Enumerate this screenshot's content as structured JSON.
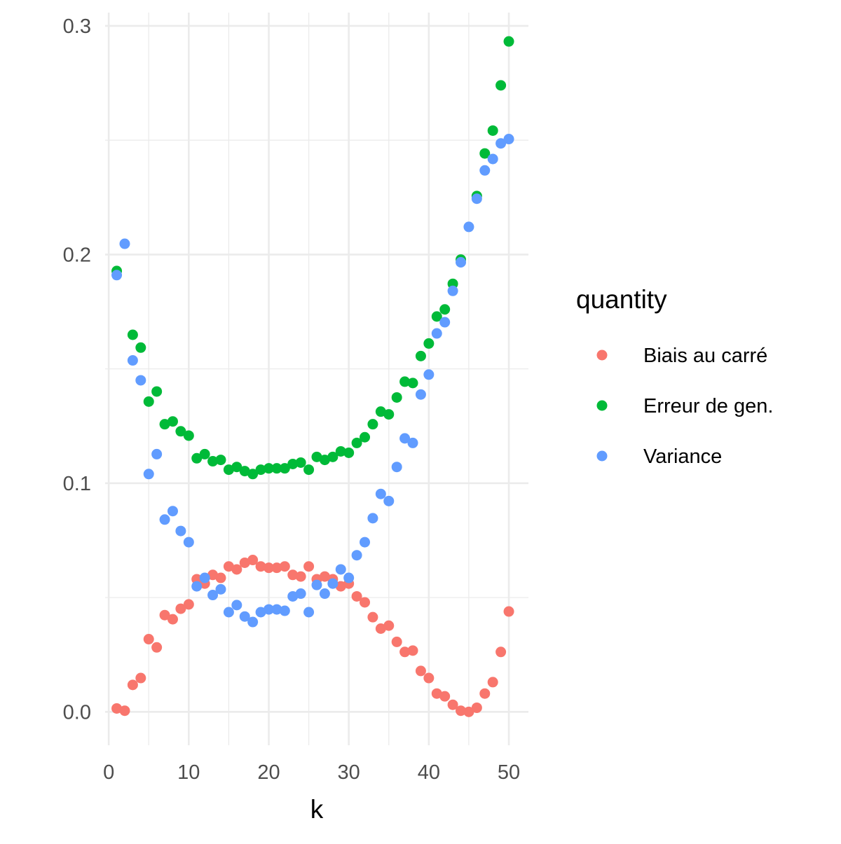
{
  "chart_data": {
    "type": "scatter",
    "title": "",
    "xlabel": "k",
    "ylabel": "",
    "xlim": [
      -0.45,
      52.45
    ],
    "ylim": [
      -0.0146,
      0.3058
    ],
    "x_ticks": [
      0,
      10,
      20,
      30,
      40,
      50
    ],
    "x_tick_labels": [
      "0",
      "10",
      "20",
      "30",
      "40",
      "50"
    ],
    "y_ticks": [
      0.0,
      0.1,
      0.2,
      0.3
    ],
    "y_tick_labels": [
      "0.0",
      "0.1",
      "0.2",
      "0.3"
    ],
    "grid": true,
    "legend": {
      "title": "quantity",
      "placement": "right"
    },
    "series": [
      {
        "name": "Biais au carré",
        "color": "#F8766D",
        "x": [
          1,
          2,
          3,
          4,
          5,
          6,
          7,
          8,
          9,
          10,
          11,
          12,
          13,
          14,
          15,
          16,
          17,
          18,
          19,
          20,
          21,
          22,
          23,
          24,
          25,
          26,
          27,
          28,
          29,
          30,
          31,
          32,
          33,
          34,
          35,
          36,
          37,
          38,
          39,
          40,
          41,
          42,
          43,
          44,
          45,
          46,
          47,
          48,
          49,
          50
        ],
        "y": [
          0.0015,
          0.0005,
          0.0118,
          0.0148,
          0.0318,
          0.0282,
          0.0423,
          0.0405,
          0.0451,
          0.047,
          0.058,
          0.0561,
          0.0599,
          0.0586,
          0.0636,
          0.0623,
          0.0652,
          0.0664,
          0.0636,
          0.063,
          0.063,
          0.0636,
          0.0599,
          0.0592,
          0.0636,
          0.058,
          0.0592,
          0.058,
          0.0549,
          0.0561,
          0.0505,
          0.0479,
          0.0414,
          0.0364,
          0.0377,
          0.0306,
          0.0262,
          0.0268,
          0.0179,
          0.0148,
          0.008,
          0.0068,
          0.0031,
          0.0005,
          0.0,
          0.0018,
          0.008,
          0.013,
          0.0262,
          0.0439
        ]
      },
      {
        "name": "Erreur de gen.",
        "color": "#00BA38",
        "x": [
          1,
          2,
          3,
          4,
          5,
          6,
          7,
          8,
          9,
          10,
          11,
          12,
          13,
          14,
          15,
          16,
          17,
          18,
          19,
          20,
          21,
          22,
          23,
          24,
          25,
          26,
          27,
          28,
          29,
          30,
          31,
          32,
          33,
          34,
          35,
          36,
          37,
          38,
          39,
          40,
          41,
          42,
          43,
          44,
          45,
          46,
          47,
          48,
          49,
          50
        ],
        "y": [
          0.1928,
          null,
          0.1649,
          0.1593,
          0.1357,
          0.1401,
          0.1258,
          0.127,
          0.1227,
          0.1208,
          0.1109,
          0.1127,
          0.1096,
          0.1102,
          0.1059,
          0.1071,
          0.1053,
          0.104,
          0.1059,
          0.1065,
          0.1065,
          0.1065,
          0.1084,
          0.109,
          0.1059,
          0.1115,
          0.1102,
          0.1115,
          0.1139,
          0.1133,
          0.1176,
          0.1201,
          0.1258,
          0.1313,
          0.1301,
          0.1375,
          0.1444,
          0.1438,
          0.1556,
          0.1611,
          0.1729,
          0.176,
          0.1872,
          0.1978,
          null,
          0.2256,
          0.2442,
          0.2542,
          0.274,
          0.2932
        ]
      },
      {
        "name": "Variance",
        "color": "#619CFF",
        "x": [
          1,
          2,
          3,
          4,
          5,
          6,
          7,
          8,
          9,
          10,
          11,
          12,
          13,
          14,
          15,
          16,
          17,
          18,
          19,
          20,
          21,
          22,
          23,
          24,
          25,
          26,
          27,
          28,
          29,
          30,
          31,
          32,
          33,
          34,
          35,
          36,
          37,
          38,
          39,
          40,
          41,
          42,
          43,
          44,
          45,
          46,
          47,
          48,
          49,
          50
        ],
        "y": [
          0.191,
          0.2047,
          0.1537,
          0.145,
          0.104,
          0.1127,
          0.0841,
          0.0878,
          0.0791,
          0.0742,
          0.0549,
          0.0586,
          0.0511,
          0.0536,
          0.0436,
          0.0467,
          0.0417,
          0.0393,
          0.0436,
          0.0448,
          0.0448,
          0.0442,
          0.0505,
          0.0517,
          0.0436,
          0.0555,
          0.0517,
          0.0561,
          0.0623,
          0.0586,
          0.0685,
          0.0742,
          0.0847,
          0.0953,
          0.0922,
          0.1071,
          0.1196,
          0.1176,
          0.1388,
          0.1475,
          0.1655,
          0.1704,
          0.1841,
          0.1966,
          0.2121,
          0.2244,
          0.2368,
          0.2418,
          0.2486,
          0.2505
        ]
      }
    ]
  }
}
